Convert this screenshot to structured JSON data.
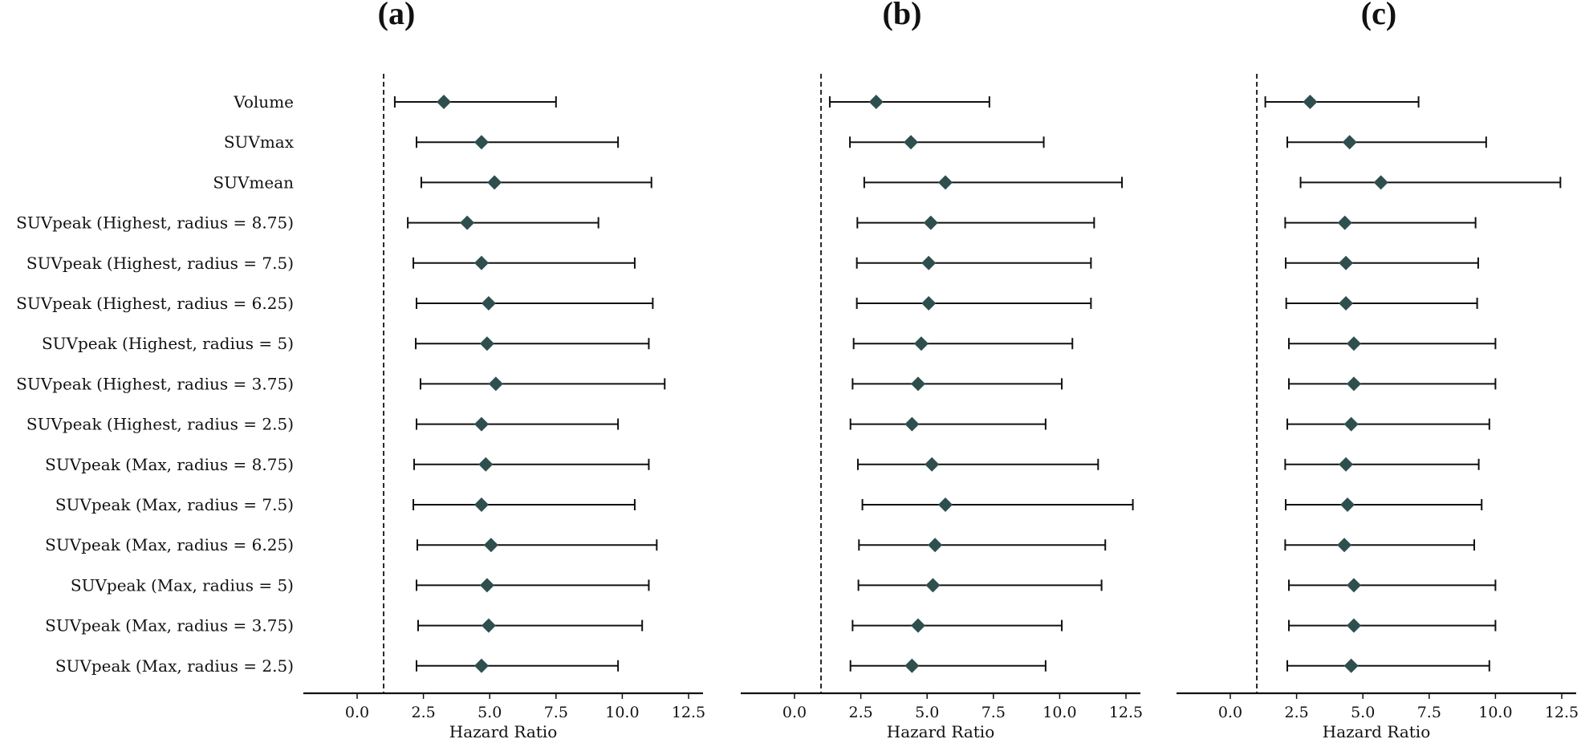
{
  "figure": {
    "colors": {
      "marker": "#2f4f4f",
      "errorbar": "#111111",
      "reference_line": "#111111",
      "background": "#ffffff"
    }
  },
  "chart_data": [
    {
      "type": "forest",
      "title": "(a)",
      "xlabel": "Hazard Ratio",
      "ylabel": "",
      "xlim": [
        -1.7,
        13.0
      ],
      "xticks": [
        0.0,
        2.5,
        5.0,
        7.5,
        10.0,
        12.5
      ],
      "xtick_labels": [
        "0.0",
        "2.5",
        "5.0",
        "7.5",
        "10.0",
        "12.5"
      ],
      "reference_line": 1.0,
      "grid": false,
      "categories": [
        "Volume",
        "SUVmax",
        "SUVmean",
        "SUVpeak (Highest, radius = 8.75)",
        "SUVpeak (Highest, radius = 7.5)",
        "SUVpeak (Highest, radius = 6.25)",
        "SUVpeak (Highest, radius = 5)",
        "SUVpeak (Highest, radius = 3.75)",
        "SUVpeak (Highest, radius = 2.5)",
        "SUVpeak (Max, radius = 8.75)",
        "SUVpeak (Max, radius = 7.5)",
        "SUVpeak (Max, radius = 6.25)",
        "SUVpeak (Max, radius = 5)",
        "SUVpeak (Max, radius = 3.75)",
        "SUVpeak (Max, radius = 2.5)"
      ],
      "hr": [
        3.27,
        4.69,
        5.18,
        4.15,
        4.69,
        4.96,
        4.9,
        5.23,
        4.69,
        4.85,
        4.69,
        5.05,
        4.9,
        4.96,
        4.69
      ],
      "ci_lower": [
        1.42,
        2.24,
        2.42,
        1.91,
        2.12,
        2.24,
        2.21,
        2.39,
        2.24,
        2.15,
        2.12,
        2.27,
        2.24,
        2.3,
        2.24
      ],
      "ci_upper": [
        7.5,
        9.84,
        11.1,
        9.1,
        10.47,
        11.15,
        11.0,
        11.6,
        9.84,
        11.0,
        10.47,
        11.3,
        11.0,
        10.75,
        9.84
      ]
    },
    {
      "type": "forest",
      "title": "(b)",
      "xlabel": "Hazard Ratio",
      "ylabel": "",
      "xlim": [
        -1.7,
        13.0
      ],
      "xticks": [
        0.0,
        2.5,
        5.0,
        7.5,
        10.0,
        12.5
      ],
      "xtick_labels": [
        "0.0",
        "2.5",
        "5.0",
        "7.5",
        "10.0",
        "12.5"
      ],
      "reference_line": 1.0,
      "grid": false,
      "categories": [
        "Volume",
        "SUVmax",
        "SUVmean",
        "SUVpeak (Highest, radius = 8.75)",
        "SUVpeak (Highest, radius = 7.5)",
        "SUVpeak (Highest, radius = 6.25)",
        "SUVpeak (Highest, radius = 5)",
        "SUVpeak (Highest, radius = 3.75)",
        "SUVpeak (Highest, radius = 2.5)",
        "SUVpeak (Max, radius = 8.75)",
        "SUVpeak (Max, radius = 7.5)",
        "SUVpeak (Max, radius = 6.25)",
        "SUVpeak (Max, radius = 5)",
        "SUVpeak (Max, radius = 3.75)",
        "SUVpeak (Max, radius = 2.5)"
      ],
      "hr": [
        3.08,
        4.39,
        5.69,
        5.14,
        5.06,
        5.06,
        4.78,
        4.66,
        4.43,
        5.18,
        5.69,
        5.3,
        5.22,
        4.66,
        4.43
      ],
      "ci_lower": [
        1.33,
        2.09,
        2.63,
        2.37,
        2.35,
        2.35,
        2.23,
        2.19,
        2.11,
        2.39,
        2.56,
        2.43,
        2.41,
        2.19,
        2.11
      ],
      "ci_upper": [
        7.35,
        9.4,
        12.35,
        11.3,
        11.18,
        11.18,
        10.48,
        10.08,
        9.47,
        11.45,
        12.76,
        11.72,
        11.58,
        10.08,
        9.47
      ]
    },
    {
      "type": "forest",
      "title": "(c)",
      "xlabel": "Hazard Ratio",
      "ylabel": "",
      "xlim": [
        -1.7,
        13.0
      ],
      "xticks": [
        0.0,
        2.5,
        5.0,
        7.5,
        10.0,
        12.5
      ],
      "xtick_labels": [
        "0.0",
        "2.5",
        "5.0",
        "7.5",
        "10.0",
        "12.5"
      ],
      "reference_line": 1.0,
      "grid": false,
      "categories": [
        "Volume",
        "SUVmax",
        "SUVmean",
        "SUVpeak (Highest, radius = 8.75)",
        "SUVpeak (Highest, radius = 7.5)",
        "SUVpeak (Highest, radius = 6.25)",
        "SUVpeak (Highest, radius = 5)",
        "SUVpeak (Highest, radius = 3.75)",
        "SUVpeak (Highest, radius = 2.5)",
        "SUVpeak (Max, radius = 8.75)",
        "SUVpeak (Max, radius = 7.5)",
        "SUVpeak (Max, radius = 6.25)",
        "SUVpeak (Max, radius = 5)",
        "SUVpeak (Max, radius = 3.75)",
        "SUVpeak (Max, radius = 2.5)"
      ],
      "hr": [
        3.01,
        4.5,
        5.68,
        4.32,
        4.36,
        4.36,
        4.66,
        4.66,
        4.56,
        4.36,
        4.42,
        4.3,
        4.66,
        4.66,
        4.56
      ],
      "ci_lower": [
        1.32,
        2.15,
        2.65,
        2.07,
        2.09,
        2.11,
        2.21,
        2.21,
        2.15,
        2.07,
        2.09,
        2.07,
        2.21,
        2.21,
        2.15
      ],
      "ci_upper": [
        7.1,
        9.65,
        12.45,
        9.25,
        9.35,
        9.31,
        10.0,
        10.0,
        9.77,
        9.37,
        9.48,
        9.2,
        10.0,
        10.0,
        9.77
      ]
    }
  ]
}
